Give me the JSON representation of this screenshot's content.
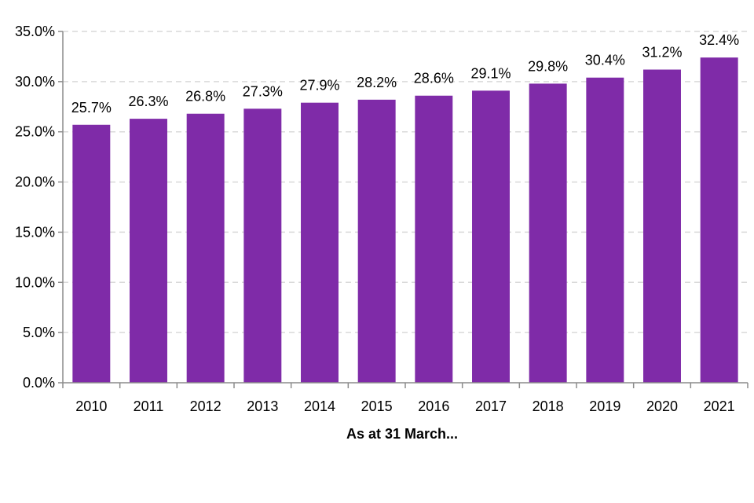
{
  "chart_data": {
    "type": "bar",
    "title": "",
    "xlabel": "As at 31 March...",
    "ylabel": "",
    "categories": [
      "2010",
      "2011",
      "2012",
      "2013",
      "2014",
      "2015",
      "2016",
      "2017",
      "2018",
      "2019",
      "2020",
      "2021"
    ],
    "values": [
      25.7,
      26.3,
      26.8,
      27.3,
      27.9,
      28.2,
      28.6,
      29.1,
      29.8,
      30.4,
      31.2,
      32.4
    ],
    "data_labels": [
      "25.7%",
      "26.3%",
      "26.8%",
      "27.3%",
      "27.9%",
      "28.2%",
      "28.6%",
      "29.1%",
      "29.8%",
      "30.4%",
      "31.2%",
      "32.4%"
    ],
    "ylim": [
      0,
      35
    ],
    "yticks": [
      0,
      5,
      10,
      15,
      20,
      25,
      30,
      35
    ],
    "ytick_labels": [
      "0.0%",
      "5.0%",
      "10.0%",
      "15.0%",
      "20.0%",
      "25.0%",
      "30.0%",
      "35.0%"
    ],
    "grid": true,
    "legend": "none",
    "colors": {
      "bar": "#7f2ba8",
      "grid": "#d9d9d9",
      "axis": "#8c8c8c",
      "text": "#000000"
    }
  }
}
